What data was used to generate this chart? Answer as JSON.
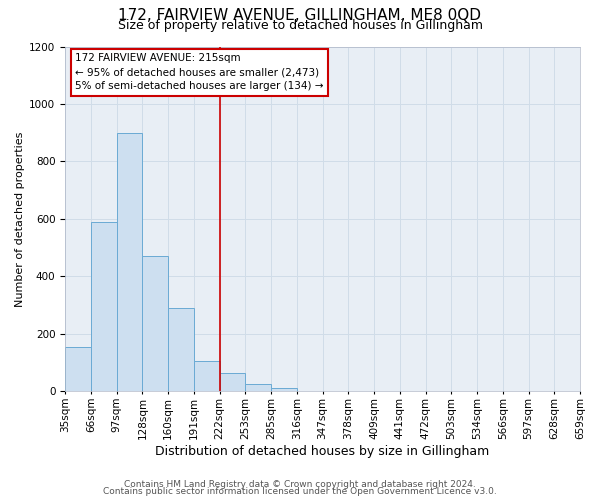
{
  "title": "172, FAIRVIEW AVENUE, GILLINGHAM, ME8 0QD",
  "subtitle": "Size of property relative to detached houses in Gillingham",
  "xlabel": "Distribution of detached houses by size in Gillingham",
  "ylabel": "Number of detached properties",
  "footer_lines": [
    "Contains HM Land Registry data © Crown copyright and database right 2024.",
    "Contains public sector information licensed under the Open Government Licence v3.0."
  ],
  "bin_labels": [
    "35sqm",
    "66sqm",
    "97sqm",
    "128sqm",
    "160sqm",
    "191sqm",
    "222sqm",
    "253sqm",
    "285sqm",
    "316sqm",
    "347sqm",
    "378sqm",
    "409sqm",
    "441sqm",
    "472sqm",
    "503sqm",
    "534sqm",
    "566sqm",
    "597sqm",
    "628sqm",
    "659sqm"
  ],
  "bar_values": [
    155,
    590,
    900,
    470,
    290,
    107,
    65,
    27,
    10,
    0,
    0,
    0,
    0,
    0,
    0,
    0,
    0,
    0,
    0,
    0
  ],
  "bar_color": "#cddff0",
  "bar_edge_color": "#6aaad4",
  "vline_x": 6,
  "vline_color": "#cc0000",
  "annotation_text": "172 FAIRVIEW AVENUE: 215sqm\n← 95% of detached houses are smaller (2,473)\n5% of semi-detached houses are larger (134) →",
  "annotation_box_edge_color": "#cc0000",
  "ylim": [
    0,
    1200
  ],
  "yticks": [
    0,
    200,
    400,
    600,
    800,
    1000,
    1200
  ],
  "grid_color": "#d0dce8",
  "bg_color": "#e8eef5",
  "title_fontsize": 11,
  "subtitle_fontsize": 9,
  "ylabel_fontsize": 8,
  "xlabel_fontsize": 9,
  "tick_fontsize": 7.5,
  "footer_fontsize": 6.5
}
